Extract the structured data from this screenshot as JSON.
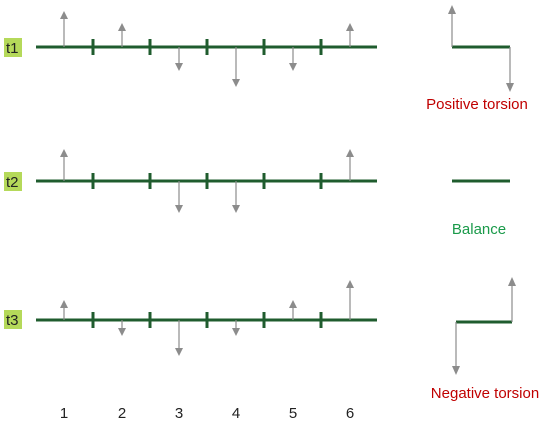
{
  "rows": [
    {
      "label": "t1",
      "forces": [
        0.9,
        0.6,
        -0.6,
        -1.0,
        -0.6,
        0.6
      ]
    },
    {
      "label": "t2",
      "forces": [
        0.8,
        0.0,
        -0.8,
        -0.8,
        0.0,
        0.8
      ]
    },
    {
      "label": "t3",
      "forces": [
        0.5,
        -0.4,
        -0.9,
        -0.4,
        0.5,
        1.0
      ]
    }
  ],
  "x_labels": [
    "1",
    "2",
    "3",
    "4",
    "5",
    "6"
  ],
  "results": [
    {
      "label": "Positive torsion",
      "color": "#c00000",
      "shape": "step-down"
    },
    {
      "label": "Balance",
      "color": "#1a9a4a",
      "shape": "flat"
    },
    {
      "label": "Negative torsion",
      "color": "#c00000",
      "shape": "step-up"
    }
  ],
  "colors": {
    "beam": "#1f5c2e",
    "arrow": "#8c8c8c",
    "label_bg": "#b5d95a"
  }
}
